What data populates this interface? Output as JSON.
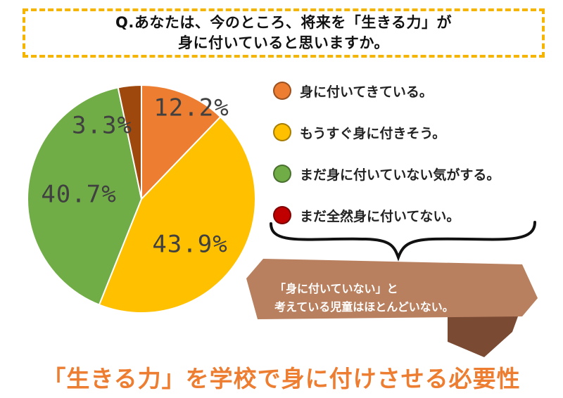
{
  "question": {
    "line1": "Q.あなたは、今のところ、将来を「生きる力」が",
    "line2": "身に付いていると思いますか。"
  },
  "chart_data": {
    "type": "pie",
    "slices": [
      {
        "label": "身に付いてきている。",
        "value": 12.2,
        "value_label": "12.2%",
        "color": "#ed7d31"
      },
      {
        "label": "もうすぐ身に付きそう。",
        "value": 43.9,
        "value_label": "43.9%",
        "color": "#ffc000"
      },
      {
        "label": "まだ身に付いていない気がする。",
        "value": 40.7,
        "value_label": "40.7%",
        "color": "#70ad47"
      },
      {
        "label": "まだ全然身に付いてない。",
        "value": 3.3,
        "value_label": "3.3%",
        "color": "#9e480e"
      }
    ]
  },
  "legend": [
    {
      "label": "身に付いてきている。",
      "color": "#ed7d31"
    },
    {
      "label": "もうすぐ身に付きそう。",
      "color": "#ffc000"
    },
    {
      "label": "まだ身に付いていない気がする。",
      "color": "#70ad47"
    },
    {
      "label": "まだ全然身に付いてない。",
      "color": "#c00000"
    }
  ],
  "note": {
    "line1": "「身に付いていない」と",
    "line2": "考えている児童はほとんどいない。",
    "color": "#b9805f"
  },
  "bottom_title": {
    "text": "「生きる力」を学校で身に付けさせる必要性",
    "color": "#ed7d31"
  }
}
